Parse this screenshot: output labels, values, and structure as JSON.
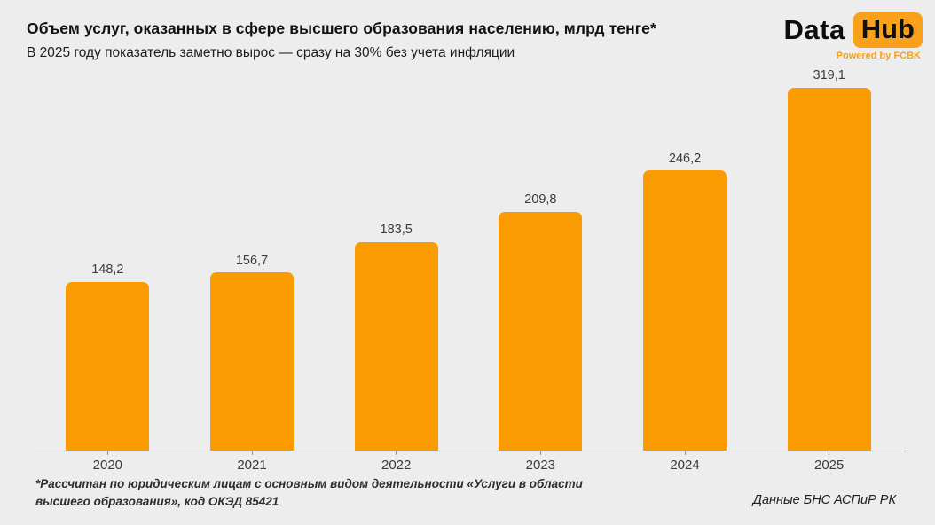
{
  "header": {
    "title": "Объем услуг, оказанных в сфере высшего образования населению, млрд тенге*",
    "subtitle": "В 2025 году показатель заметно вырос — сразу на 30% без учета инфляции"
  },
  "logo": {
    "part1": "Data",
    "part2": "Hub",
    "tagline": "Powered by FCBK"
  },
  "chart_data": {
    "type": "bar",
    "title": "Объем услуг, оказанных в сфере высшего образования населению, млрд тенге*",
    "subtitle": "В 2025 году показатель заметно вырос — сразу на 30% без учета инфляции",
    "categories": [
      "2020",
      "2021",
      "2022",
      "2023",
      "2024",
      "2025"
    ],
    "values": [
      148.2,
      156.7,
      183.5,
      209.8,
      246.2,
      319.1
    ],
    "value_labels": [
      "148,2",
      "156,7",
      "183,5",
      "209,8",
      "246,2",
      "319,1"
    ],
    "xlabel": "",
    "ylabel": "млрд тенге",
    "ylim": [
      0,
      330
    ],
    "grid": false,
    "legend": false,
    "bar_color": "#FB9B04"
  },
  "footer": {
    "footnote": "*Рассчитан по юридическим лицам с основным видом деятельности «Услуги в области высшего образования», код ОКЭД 85421",
    "source": "Данные БНС АСПиР РК"
  },
  "colors": {
    "background": "#EDEDED",
    "accent": "#FB9B04",
    "logo_box": "#F9A11B",
    "logo_tagline": "#F5A21B",
    "axis": "#8f8f8f",
    "text": "#121212"
  }
}
